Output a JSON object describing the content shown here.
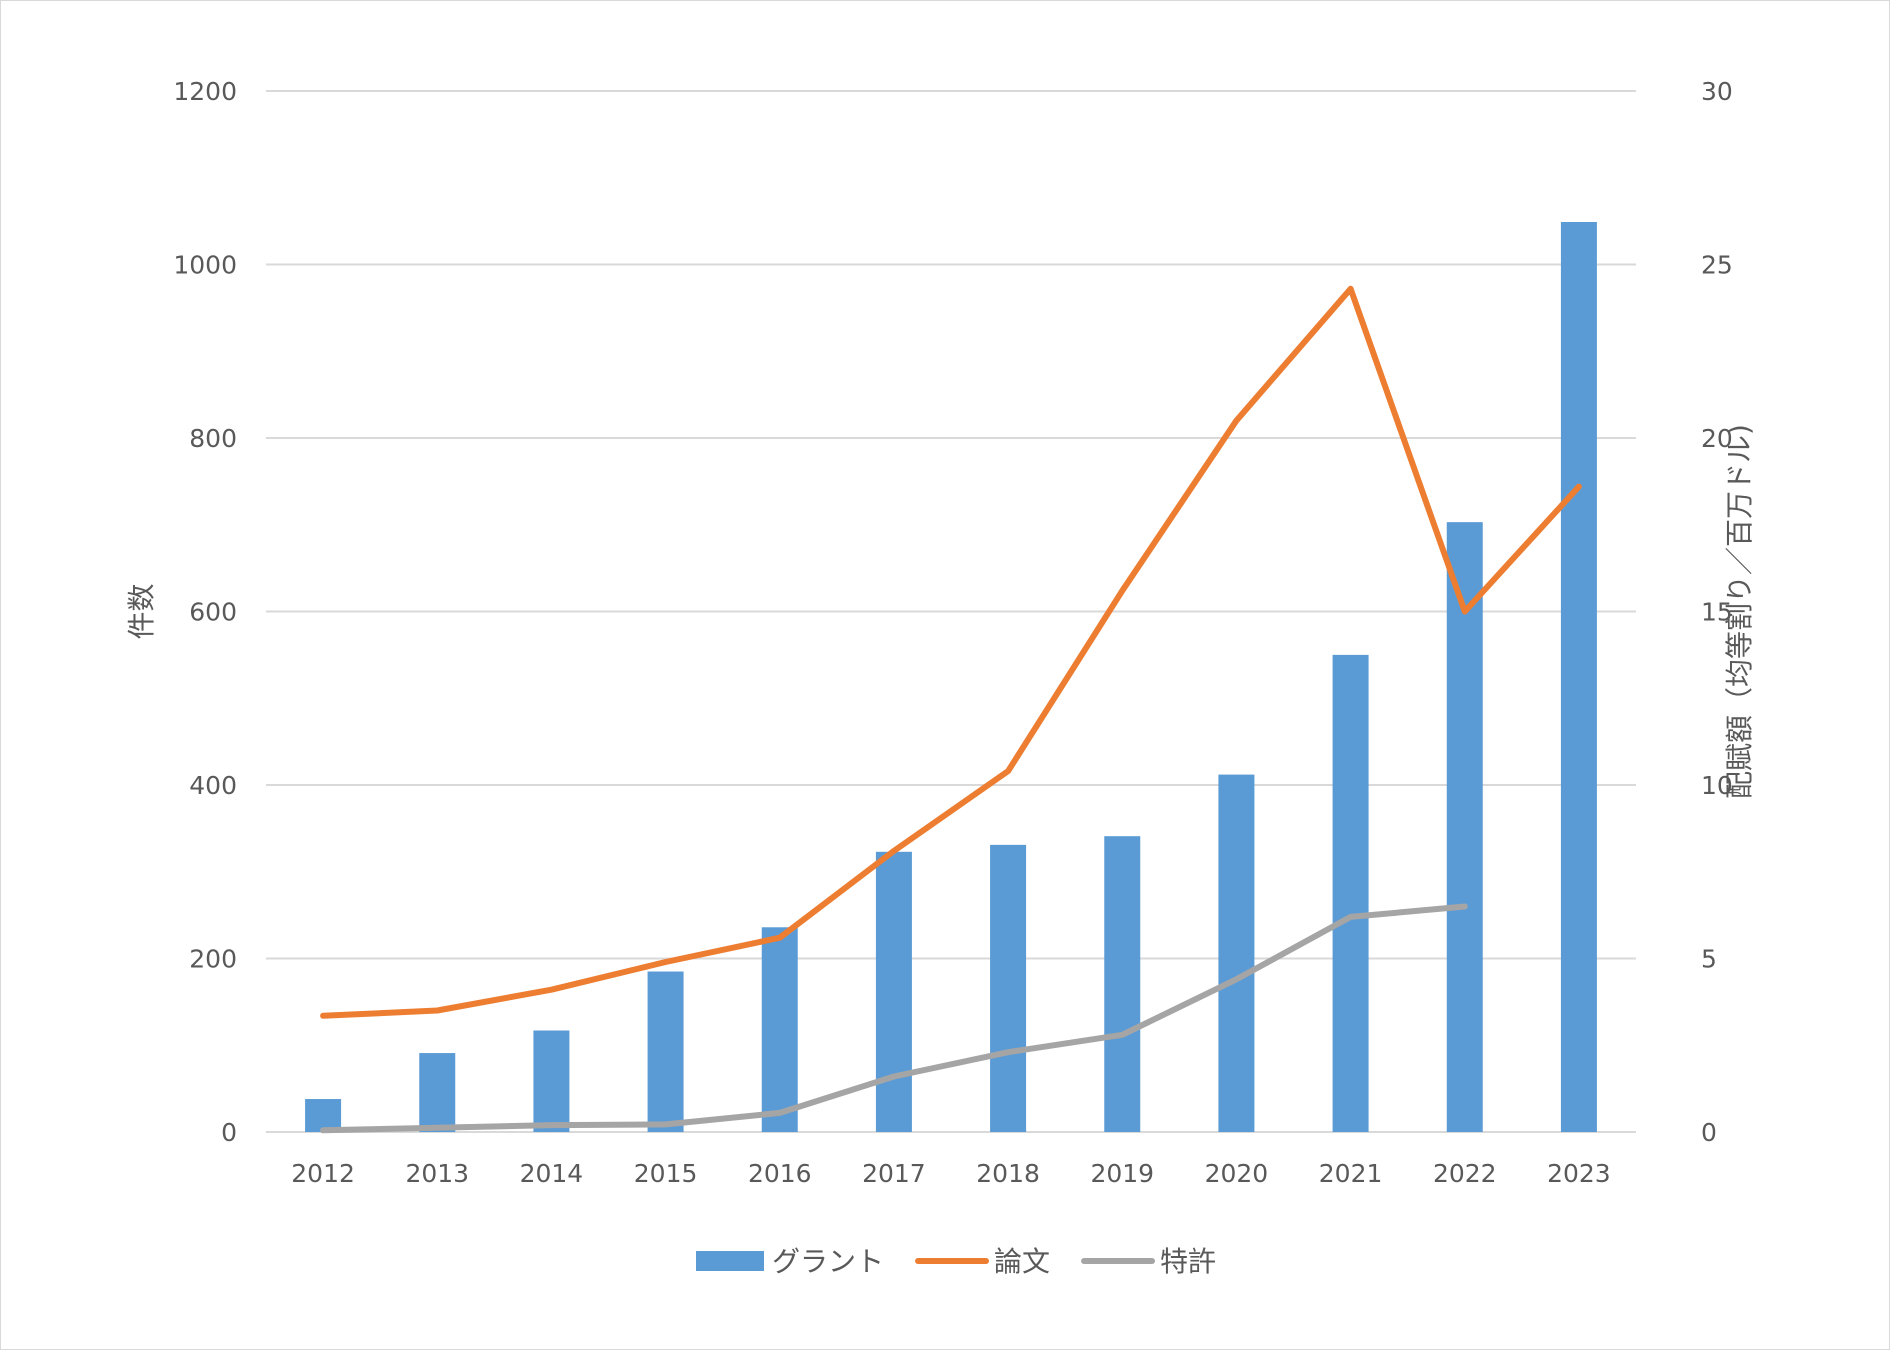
{
  "chart_data": {
    "type": "bar",
    "categories": [
      "2012",
      "2013",
      "2014",
      "2015",
      "2016",
      "2017",
      "2018",
      "2019",
      "2020",
      "2021",
      "2022",
      "2023"
    ],
    "series": [
      {
        "name": "グラント",
        "type": "bar",
        "axis": "left",
        "color": "#5b9bd5",
        "values": [
          38,
          91,
          117,
          185,
          236,
          323,
          331,
          341,
          412,
          550,
          703,
          1049
        ]
      },
      {
        "name": "論文",
        "type": "line",
        "axis": "right",
        "color": "#ed7d31",
        "values": [
          3.35,
          3.5,
          4.1,
          4.9,
          5.6,
          8.1,
          10.4,
          15.6,
          20.5,
          24.3,
          15.0,
          18.6
        ]
      },
      {
        "name": "特許",
        "type": "line",
        "axis": "right",
        "color": "#a5a5a5",
        "values": [
          0.05,
          0.12,
          0.2,
          0.22,
          0.55,
          1.6,
          2.3,
          2.8,
          4.4,
          6.2,
          6.5,
          null
        ]
      }
    ],
    "ylabel": "件数",
    "ylabel_right": "配賦額（均等割り／百万ドル)",
    "ylim": [
      0,
      1200
    ],
    "ylim_right": [
      0,
      30
    ],
    "yticks": [
      0,
      200,
      400,
      600,
      800,
      1000,
      1200
    ],
    "yticks_right": [
      0,
      5,
      10,
      15,
      20,
      25,
      30
    ],
    "grid": true,
    "legend_position": "bottom"
  }
}
